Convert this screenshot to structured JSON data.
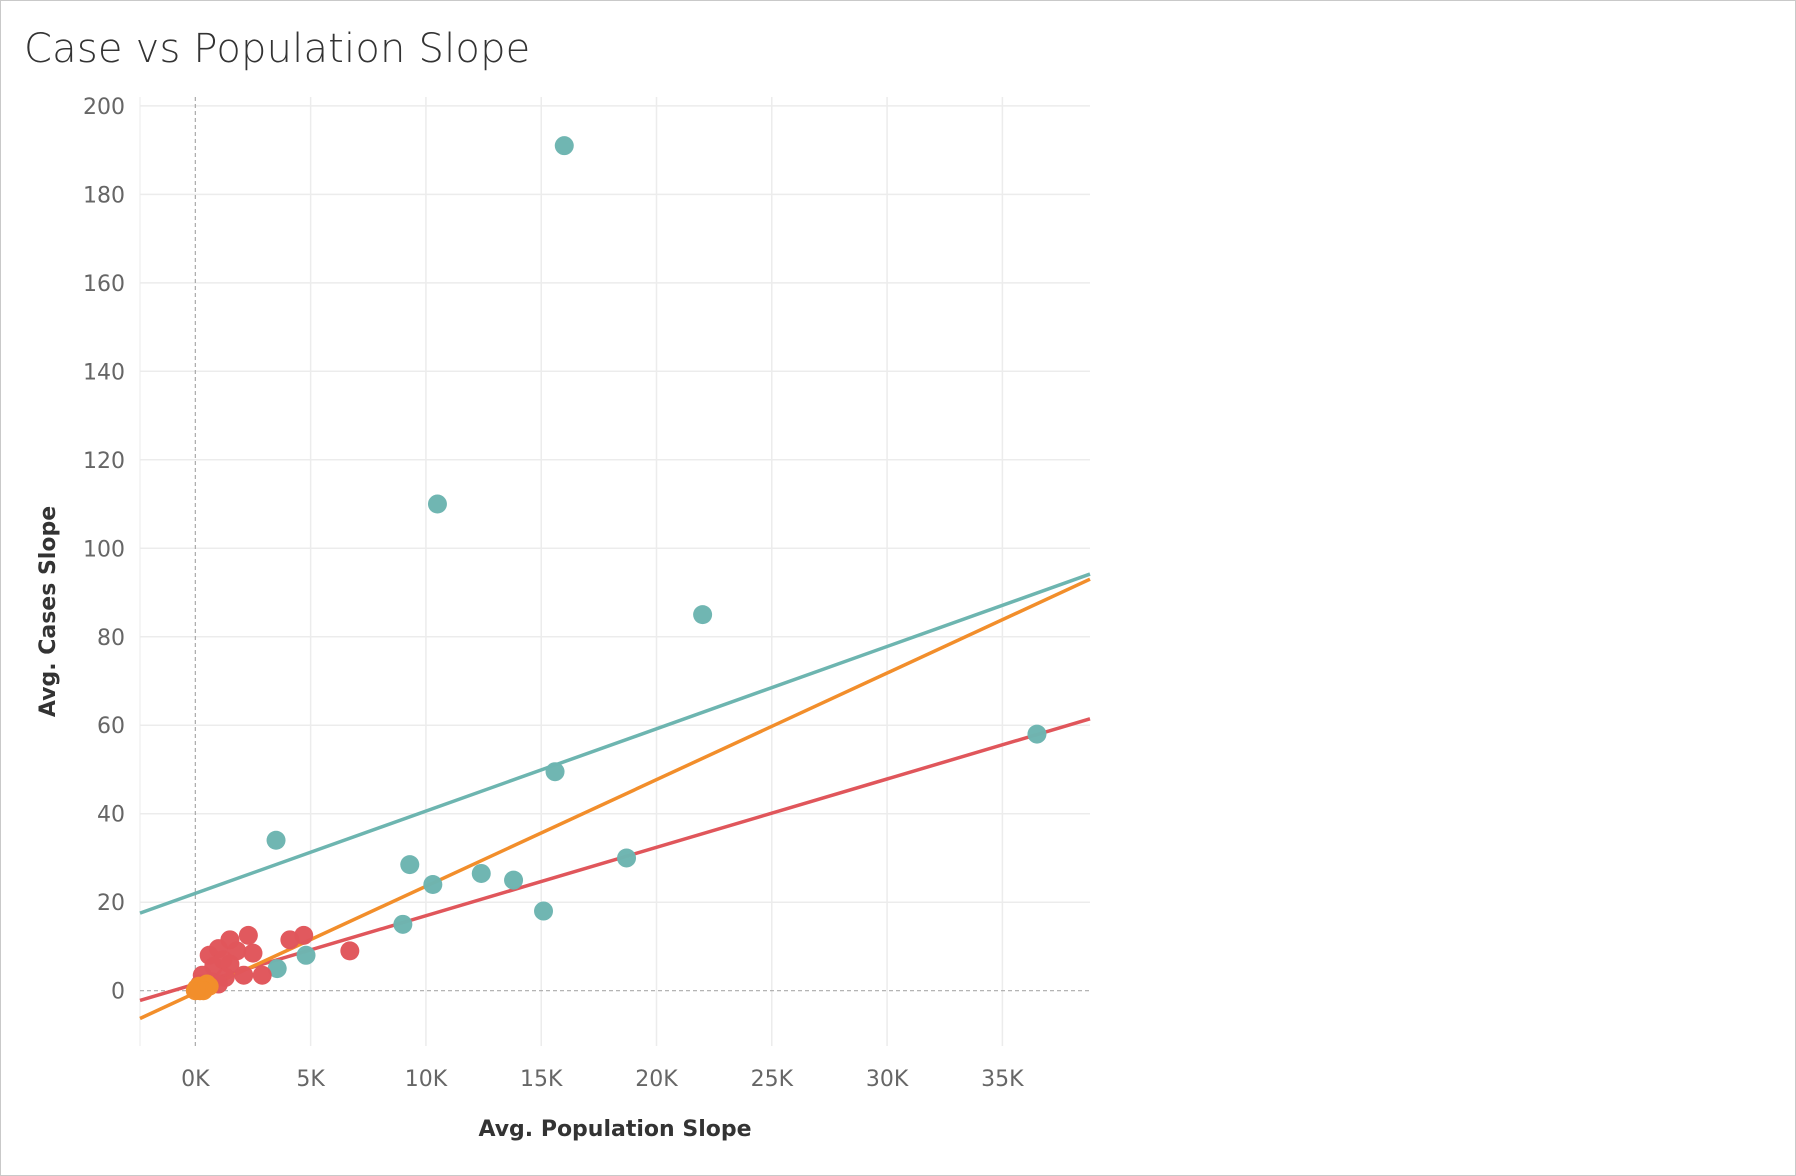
{
  "chart_data": {
    "type": "scatter",
    "title": "Case vs Population Slope",
    "xlabel": "Avg. Population Slope",
    "ylabel": "Avg. Cases Slope",
    "xlim": [
      -2400,
      38800
    ],
    "ylim": [
      -12.5,
      202
    ],
    "x_ticks": [
      {
        "value": 0,
        "label": "0K"
      },
      {
        "value": 5000,
        "label": "5K"
      },
      {
        "value": 10000,
        "label": "10K"
      },
      {
        "value": 15000,
        "label": "15K"
      },
      {
        "value": 20000,
        "label": "20K"
      },
      {
        "value": 25000,
        "label": "25K"
      },
      {
        "value": 30000,
        "label": "30K"
      },
      {
        "value": 35000,
        "label": "35K"
      }
    ],
    "y_ticks": [
      0,
      20,
      40,
      60,
      80,
      100,
      120,
      140,
      160,
      180,
      200
    ],
    "grid": true,
    "zero_lines": true,
    "series": [
      {
        "color": "#6db5b0",
        "points": [
          [
            16000,
            191
          ],
          [
            10500,
            110
          ],
          [
            22000,
            85
          ],
          [
            36500,
            58
          ],
          [
            15600,
            49.5
          ],
          [
            3500,
            34
          ],
          [
            9300,
            28.5
          ],
          [
            18700,
            30
          ],
          [
            12400,
            26.5
          ],
          [
            10300,
            24
          ],
          [
            13800,
            25
          ],
          [
            15100,
            18
          ],
          [
            9000,
            15
          ],
          [
            4800,
            8
          ],
          [
            3550,
            5
          ]
        ],
        "trend": {
          "slope": 0.00186,
          "intercept": 22
        }
      },
      {
        "color": "#e0565b",
        "points": [
          [
            2300,
            12.5
          ],
          [
            1500,
            11.5
          ],
          [
            4700,
            12.5
          ],
          [
            4100,
            11.5
          ],
          [
            1000,
            9.5
          ],
          [
            600,
            8
          ],
          [
            1800,
            9
          ],
          [
            2500,
            8.5
          ],
          [
            6700,
            9
          ],
          [
            1200,
            7
          ],
          [
            800,
            5.5
          ],
          [
            1500,
            6
          ],
          [
            2100,
            3.5
          ],
          [
            2900,
            3.5
          ],
          [
            1300,
            3
          ],
          [
            300,
            3.5
          ],
          [
            700,
            2
          ],
          [
            1000,
            1.5
          ],
          [
            400,
            0.5
          ],
          [
            200,
            1.5
          ]
        ],
        "trend": {
          "slope": 0.001545,
          "intercept": 1.5
        }
      },
      {
        "color": "#f28e2b",
        "points": [
          [
            0,
            0
          ],
          [
            100,
            0.5
          ],
          [
            200,
            0
          ],
          [
            300,
            1
          ],
          [
            400,
            0.5
          ],
          [
            500,
            1.5
          ],
          [
            600,
            1
          ],
          [
            150,
            1
          ],
          [
            350,
            0
          ],
          [
            50,
            0.5
          ]
        ],
        "trend": {
          "slope": 0.00241,
          "intercept": -0.5
        }
      }
    ]
  }
}
